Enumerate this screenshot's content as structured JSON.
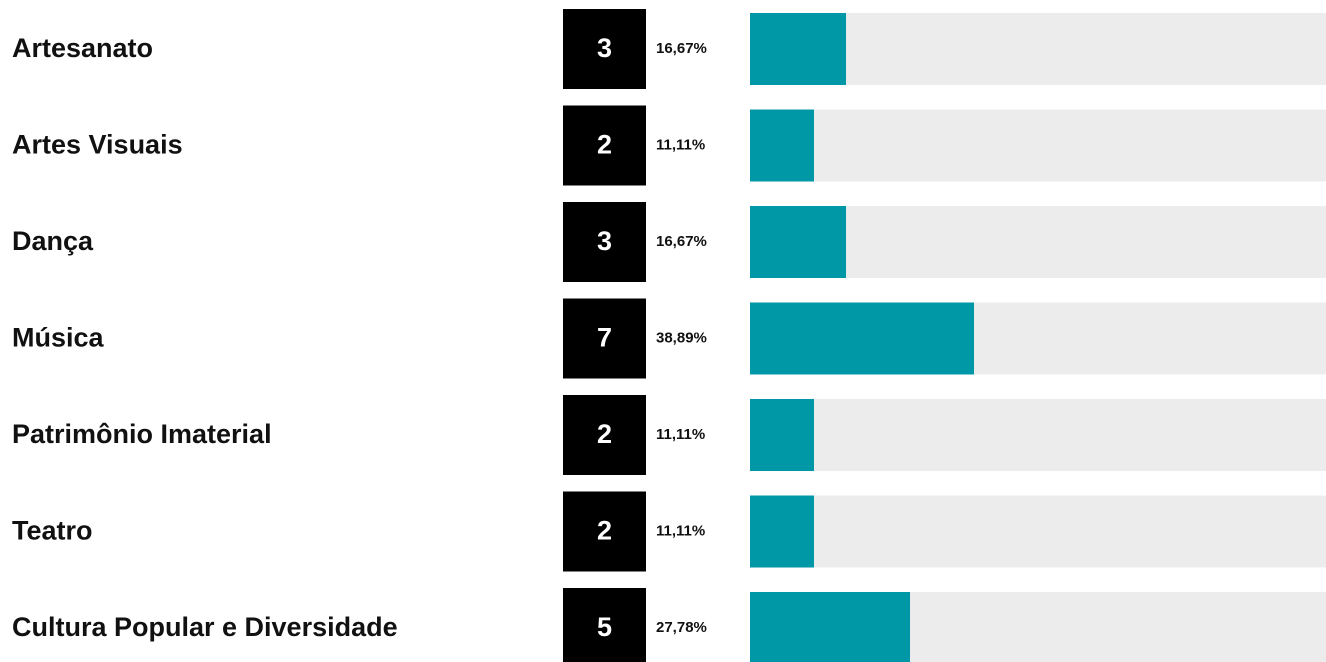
{
  "chart_data": {
    "type": "bar",
    "orientation": "horizontal",
    "categories": [
      "Artesanato",
      "Artes Visuais",
      "Dança",
      "Música",
      "Patrimônio Imaterial",
      "Teatro",
      "Cultura Popular e Diversidade"
    ],
    "counts": [
      3,
      2,
      3,
      7,
      2,
      2,
      5
    ],
    "values": [
      16.67,
      11.11,
      16.67,
      38.89,
      11.11,
      11.11,
      27.78
    ],
    "value_labels": [
      "16,67%",
      "11,11%",
      "16,67%",
      "38,89%",
      "11,11%",
      "11,11%",
      "27,78%"
    ],
    "xlim": [
      0,
      100
    ],
    "color": "#0097a7",
    "track_color": "#ececec",
    "count_box_color": "#000000"
  }
}
